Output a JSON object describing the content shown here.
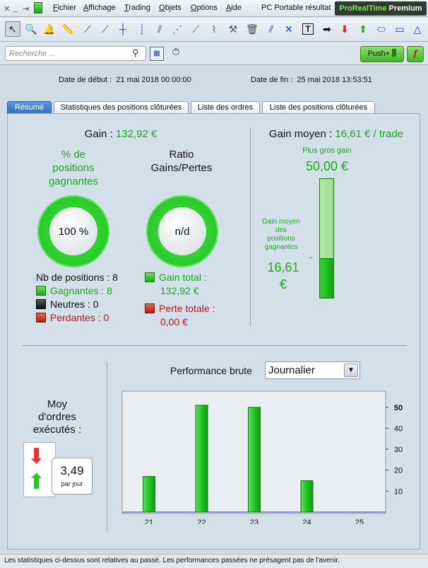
{
  "menubar": {
    "items": [
      {
        "label": "Fichier",
        "u": "F",
        "rest": "ichier"
      },
      {
        "label": "Affichage",
        "u": "A",
        "rest": "ffichage"
      },
      {
        "label": "Trading",
        "u": "T",
        "rest": "rading"
      },
      {
        "label": "Objets",
        "u": "O",
        "rest": "bjets"
      },
      {
        "label": "Options",
        "u": "O",
        "rest": "ptions"
      },
      {
        "label": "Aide",
        "u": "A",
        "rest": "ide"
      }
    ],
    "window_title": "PC Portable résultat",
    "brand_pre": "ProRealTime",
    "brand_post": "Premium"
  },
  "search": {
    "placeholder": "Recherche ..."
  },
  "push_button": {
    "label": "Push+"
  },
  "f_button": {
    "label": "f"
  },
  "dates": {
    "start_label": "Date de début :",
    "start_value": "21 mai 2018 00:00:00",
    "end_label": "Date de fin :",
    "end_value": "25 mai 2018 13:53:51"
  },
  "tabs": [
    {
      "label": "Résumé",
      "active": true
    },
    {
      "label": "Statistiques des positions clôturées",
      "active": false
    },
    {
      "label": "Liste des ordres",
      "active": false
    },
    {
      "label": "Liste des positions clôturées",
      "active": false
    }
  ],
  "summary": {
    "gain_label": "Gain :",
    "gain_value": "132,92 €",
    "pct_title_1": "% de",
    "pct_title_2": "positions",
    "pct_title_3": "gagnantes",
    "pct_value": "100 %",
    "ratio_title_1": "Ratio",
    "ratio_title_2": "Gains/Pertes",
    "ratio_value": "n/d",
    "nb_positions": "Nb de positions : 8",
    "gagnantes": "Gagnantes : 8",
    "neutres": "Neutres : 0",
    "perdantes": "Perdantes : 0",
    "gain_total_label": "Gain total :",
    "gain_total_value": "132,92 €",
    "perte_totale_label": "Perte totale :",
    "perte_totale_value": "0,00 €"
  },
  "avg_gain": {
    "label": "Gain moyen :",
    "value": "16,61 € / trade",
    "max_label": "Plus gros gain",
    "max_value": "50,00 €",
    "avg_win_label_1": "Gain moyen",
    "avg_win_label_2": "des",
    "avg_win_label_3": "positions",
    "avg_win_label_4": "gagnantes",
    "avg_win_value_1": "16,61",
    "avg_win_value_2": "€",
    "fill_fraction": 0.3322
  },
  "orders": {
    "title_1": "Moy",
    "title_2": "d'ordres",
    "title_3": "exécutés :",
    "value": "3,49",
    "unit": "par jour"
  },
  "performance": {
    "label": "Performance brute",
    "period_value": "Journalier"
  },
  "chart_data": {
    "type": "bar",
    "categories": [
      "21",
      "22",
      "23",
      "24",
      "25"
    ],
    "values": [
      17,
      51,
      50,
      15,
      0
    ],
    "ylim": [
      0,
      55
    ],
    "yticks": [
      10,
      20,
      30,
      40,
      50
    ],
    "title": "",
    "xlabel": "",
    "ylabel": "",
    "grid": false,
    "bar_color": "#22c422"
  },
  "footer": {
    "text": "Les statistiques ci-dessus sont relatives au passé. Les performances passées ne présagent pas de l'avenir."
  }
}
